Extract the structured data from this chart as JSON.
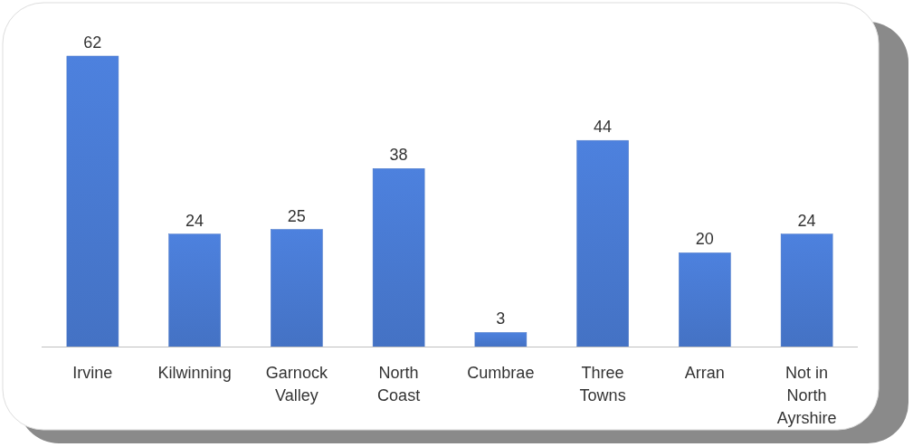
{
  "chart_data": {
    "type": "bar",
    "categories": [
      "Irvine",
      "Kilwinning",
      "Garnock Valley",
      "North Coast",
      "Cumbrae",
      "Three Towns",
      "Arran",
      "Not in North Ayrshire"
    ],
    "values": [
      62,
      24,
      25,
      38,
      3,
      44,
      20,
      24
    ],
    "color": "#4472c4",
    "data_labels": true
  }
}
